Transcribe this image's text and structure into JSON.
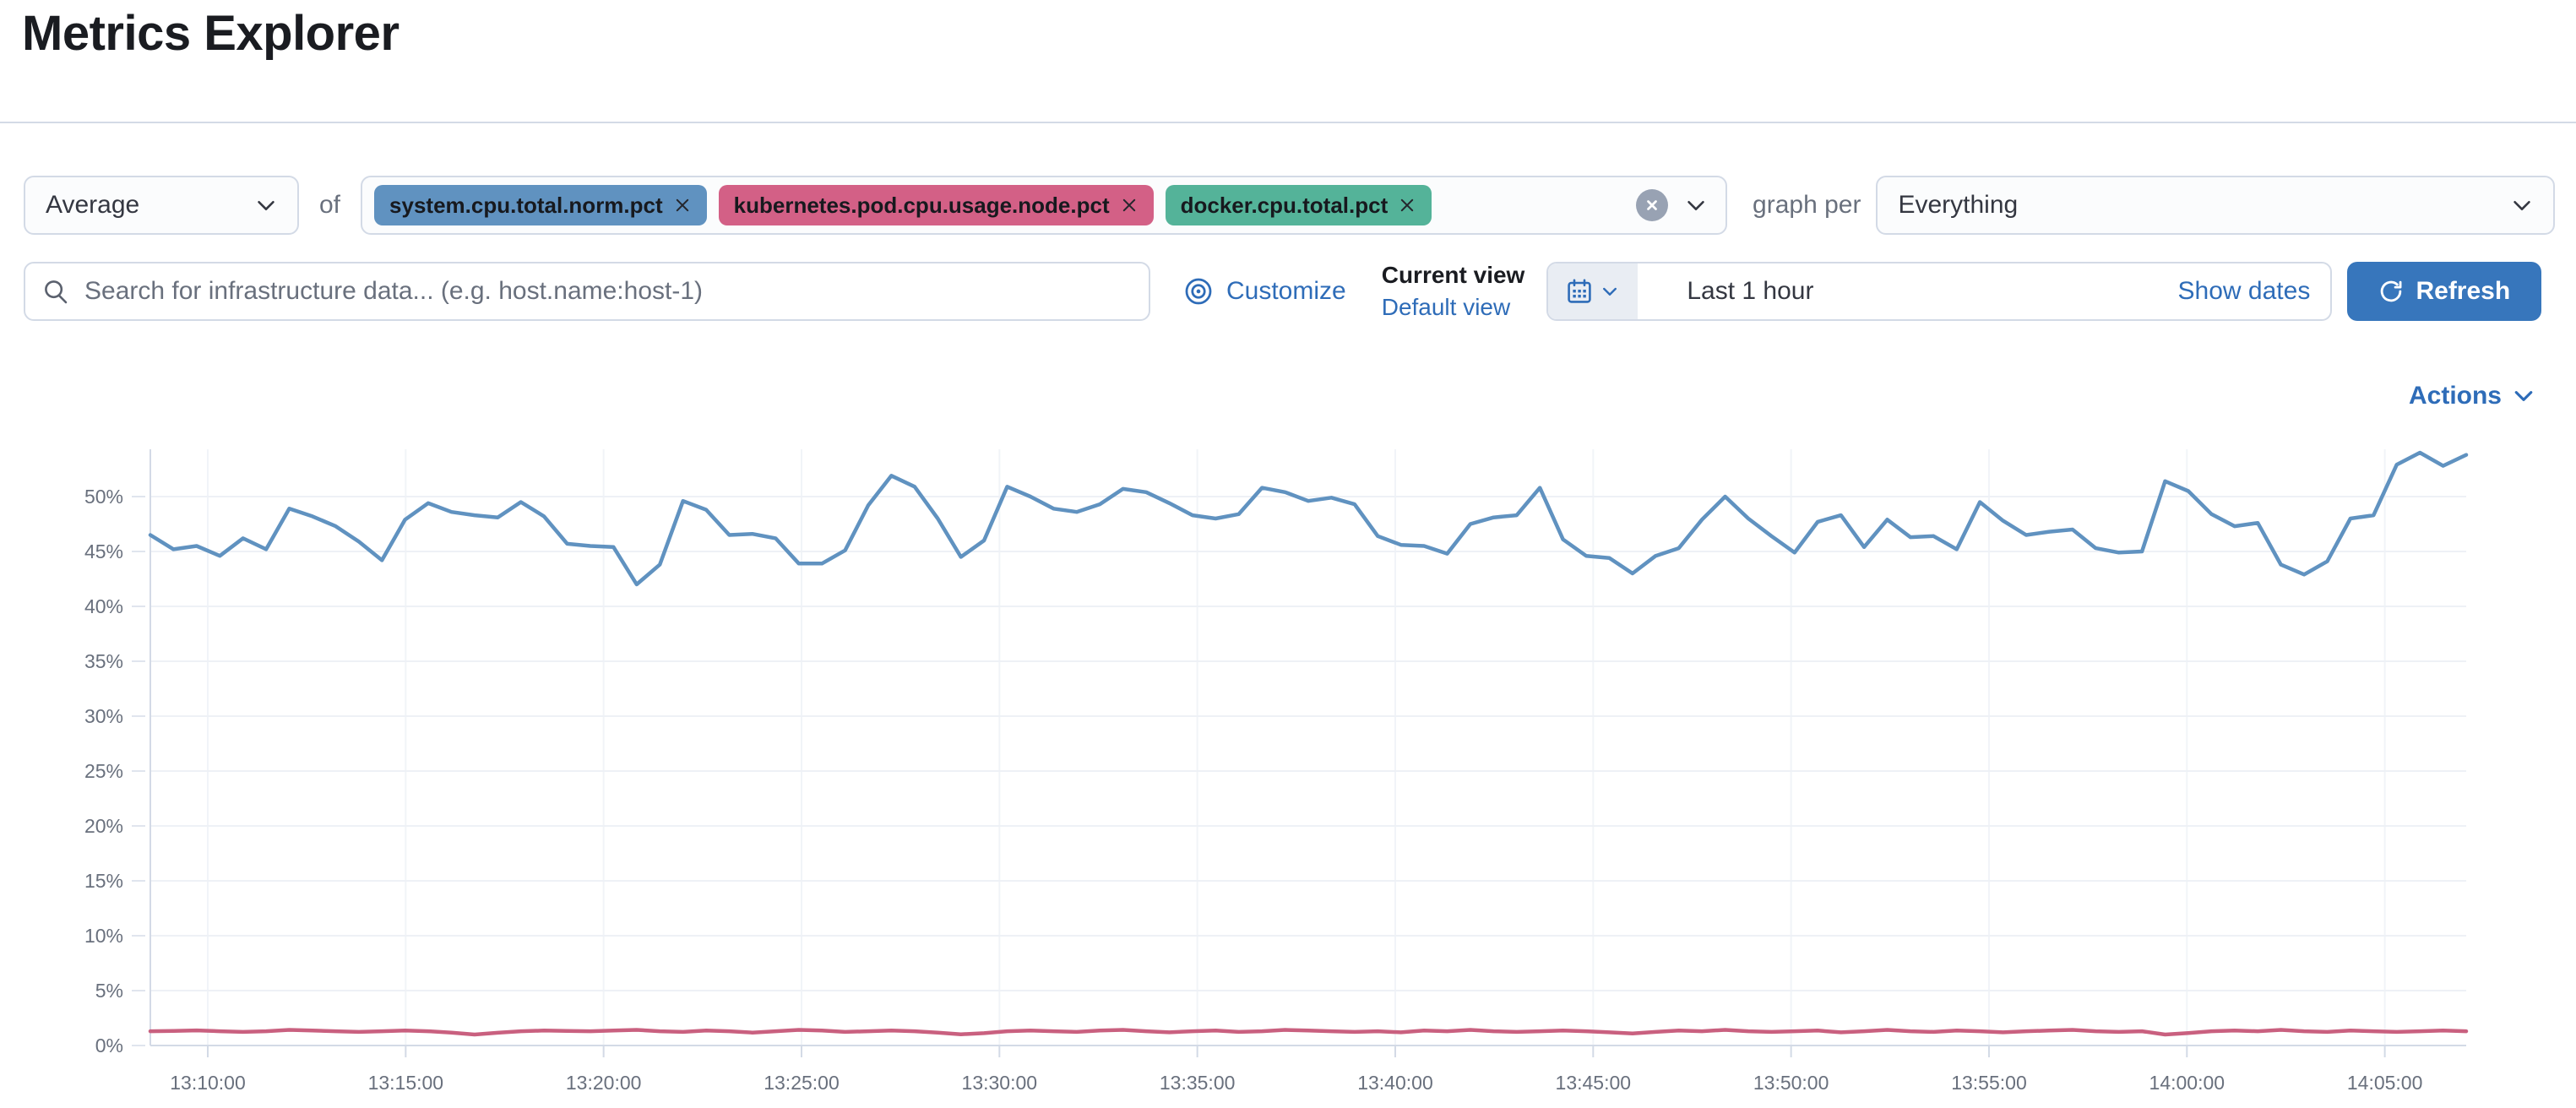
{
  "page": {
    "title": "Metrics Explorer"
  },
  "toolbar": {
    "aggregation": {
      "value": "Average"
    },
    "of_label": "of",
    "metrics": [
      {
        "label": "system.cpu.total.norm.pct",
        "color": "#6092c0"
      },
      {
        "label": "kubernetes.pod.cpu.usage.node.pct",
        "color": "#d36086"
      },
      {
        "label": "docker.cpu.total.pct",
        "color": "#54b399"
      }
    ],
    "graph_per_label": "graph per",
    "graph_per": {
      "value": "Everything"
    }
  },
  "searchbar": {
    "placeholder": "Search for infrastructure data... (e.g. host.name:host-1)",
    "customize_label": "Customize",
    "current_view_label": "Current view",
    "view_name": "Default view",
    "time_range": "Last 1 hour",
    "show_dates_label": "Show dates",
    "refresh_label": "Refresh"
  },
  "chart": {
    "actions_label": "Actions"
  },
  "chart_data": {
    "type": "line",
    "title": "",
    "xlabel": "",
    "ylabel": "",
    "x_tick_labels": [
      "13:10:00",
      "13:15:00",
      "13:20:00",
      "13:25:00",
      "13:30:00",
      "13:35:00",
      "13:40:00",
      "13:45:00",
      "13:50:00",
      "13:55:00",
      "14:00:00",
      "14:05:00"
    ],
    "y_tick_labels": [
      "0%",
      "5%",
      "10%",
      "15%",
      "20%",
      "25%",
      "30%",
      "35%",
      "40%",
      "45%",
      "50%"
    ],
    "ylim": [
      0,
      55
    ],
    "y_unit": "%",
    "grid": true,
    "legend_position": "none",
    "series": [
      {
        "name": "system.cpu.total.norm.pct",
        "color": "#6092c0",
        "values": [
          46.5,
          45.2,
          45.5,
          44.6,
          46.2,
          45.2,
          48.9,
          48.2,
          47.3,
          45.9,
          44.2,
          47.9,
          49.4,
          48.6,
          48.3,
          48.1,
          49.5,
          48.2,
          45.7,
          45.5,
          45.4,
          42.0,
          43.8,
          49.6,
          48.8,
          46.5,
          46.6,
          46.2,
          43.9,
          43.9,
          45.1,
          49.2,
          51.9,
          50.9,
          48.0,
          44.5,
          46.0,
          50.9,
          50.0,
          48.9,
          48.6,
          49.3,
          50.7,
          50.4,
          49.4,
          48.3,
          48.0,
          48.4,
          50.8,
          50.4,
          49.6,
          49.9,
          49.3,
          46.4,
          45.6,
          45.5,
          44.8,
          47.5,
          48.1,
          48.3,
          50.8,
          46.1,
          44.6,
          44.4,
          43.0,
          44.6,
          45.3,
          47.9,
          50.0,
          48.0,
          46.4,
          44.9,
          47.7,
          48.3,
          45.4,
          47.9,
          46.3,
          46.4,
          45.2,
          49.5,
          47.8,
          46.5,
          46.8,
          47.0,
          45.3,
          44.9,
          45.0,
          51.4,
          50.5,
          48.4,
          47.3,
          47.6,
          43.8,
          42.9,
          44.1,
          48.0,
          48.3,
          52.9,
          54.0,
          52.8,
          53.8
        ]
      },
      {
        "name": "kubernetes.pod.cpu.usage.node.pct",
        "color": "#c9607f",
        "values": [
          1.3,
          1.32,
          1.38,
          1.3,
          1.24,
          1.3,
          1.42,
          1.36,
          1.3,
          1.24,
          1.3,
          1.36,
          1.3,
          1.18,
          1.0,
          1.16,
          1.3,
          1.36,
          1.32,
          1.3,
          1.36,
          1.42,
          1.3,
          1.24,
          1.36,
          1.3,
          1.18,
          1.3,
          1.42,
          1.36,
          1.24,
          1.3,
          1.36,
          1.3,
          1.18,
          1.02,
          1.12,
          1.3,
          1.36,
          1.3,
          1.24,
          1.36,
          1.42,
          1.3,
          1.2,
          1.3,
          1.36,
          1.24,
          1.3,
          1.42,
          1.36,
          1.3,
          1.24,
          1.3,
          1.2,
          1.36,
          1.3,
          1.42,
          1.3,
          1.24,
          1.3,
          1.36,
          1.3,
          1.2,
          1.1,
          1.24,
          1.36,
          1.3,
          1.42,
          1.3,
          1.24,
          1.3,
          1.36,
          1.2,
          1.3,
          1.42,
          1.3,
          1.24,
          1.36,
          1.3,
          1.2,
          1.3,
          1.36,
          1.42,
          1.3,
          1.24,
          1.3,
          1.0,
          1.14,
          1.3,
          1.36,
          1.3,
          1.42,
          1.3,
          1.24,
          1.36,
          1.3,
          1.24,
          1.3,
          1.36,
          1.3
        ]
      }
    ]
  }
}
